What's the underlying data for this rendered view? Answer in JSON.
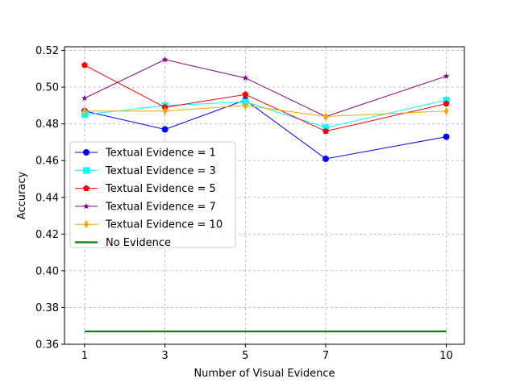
{
  "chart_data": {
    "type": "line",
    "title": "",
    "xlabel": "Number of Visual Evidence",
    "ylabel": "Accuracy",
    "x": [
      1,
      3,
      5,
      7,
      10
    ],
    "xticks": [
      1,
      3,
      5,
      7,
      10
    ],
    "xlim": [
      0.5,
      10.45
    ],
    "ylim": [
      0.36,
      0.522
    ],
    "yticks": [
      0.36,
      0.38,
      0.4,
      0.42,
      0.44,
      0.46,
      0.48,
      0.5,
      0.52
    ],
    "ytick_labels": [
      "0.36",
      "0.38",
      "0.40",
      "0.42",
      "0.44",
      "0.46",
      "0.48",
      "0.50",
      "0.52"
    ],
    "grid": true,
    "legend_position": "center-left",
    "series": [
      {
        "name": "Textual Evidence = 1",
        "color": "#0000ff",
        "marker": "circle",
        "values": [
          0.487,
          0.477,
          0.493,
          0.461,
          0.473
        ]
      },
      {
        "name": "Textual Evidence = 3",
        "color": "#00ffff",
        "marker": "square",
        "values": [
          0.485,
          0.49,
          0.492,
          0.478,
          0.493
        ]
      },
      {
        "name": "Textual Evidence = 5",
        "color": "#ff0000",
        "marker": "pentagon",
        "values": [
          0.512,
          0.489,
          0.496,
          0.476,
          0.491
        ]
      },
      {
        "name": "Textual Evidence = 7",
        "color": "#800080",
        "marker": "star",
        "values": [
          0.494,
          0.515,
          0.505,
          0.484,
          0.506
        ]
      },
      {
        "name": "Textual Evidence = 10",
        "color": "#ffa500",
        "marker": "diamond",
        "values": [
          0.487,
          0.487,
          0.49,
          0.484,
          0.487
        ]
      },
      {
        "name": "No Evidence",
        "color": "#008000",
        "marker": "none",
        "values": [
          0.367,
          0.367,
          0.367,
          0.367,
          0.367
        ]
      }
    ]
  }
}
